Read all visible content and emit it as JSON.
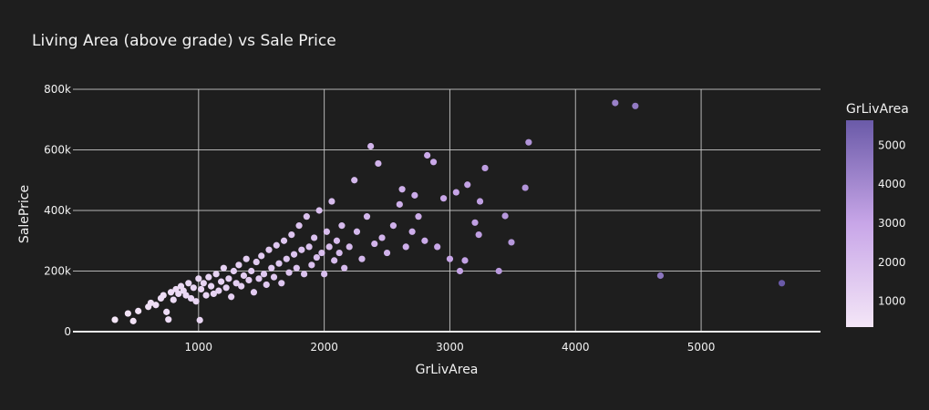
{
  "chart_data": {
    "type": "scatter",
    "title": "Living Area (above grade) vs Sale Price",
    "xlabel": "GrLivArea",
    "ylabel": "SalePrice",
    "xlim": [
      0,
      5950
    ],
    "ylim": [
      0,
      800000
    ],
    "x_ticks": [
      1000,
      2000,
      3000,
      4000,
      5000
    ],
    "x_tick_labels": [
      "1000",
      "2000",
      "3000",
      "4000",
      "5000"
    ],
    "y_ticks": [
      0,
      200000,
      400000,
      600000,
      800000
    ],
    "y_tick_labels": [
      "0",
      "200k",
      "400k",
      "600k",
      "800k"
    ],
    "grid": true,
    "colorbar": {
      "title": "GrLivArea",
      "range": [
        334,
        5642
      ],
      "ticks": [
        1000,
        2000,
        3000,
        4000,
        5000
      ],
      "tick_labels": [
        "1000",
        "2000",
        "3000",
        "4000",
        "5000"
      ],
      "color_low": "#f4e6f7",
      "color_mid": "#c8a6e8",
      "color_high": "#6a5aa8"
    },
    "points": [
      [
        334,
        39300
      ],
      [
        438,
        60000
      ],
      [
        480,
        35000
      ],
      [
        520,
        68000
      ],
      [
        600,
        82000
      ],
      [
        620,
        95000
      ],
      [
        660,
        88000
      ],
      [
        700,
        110000
      ],
      [
        720,
        120000
      ],
      [
        745,
        65000
      ],
      [
        760,
        40000
      ],
      [
        780,
        130000
      ],
      [
        800,
        105000
      ],
      [
        820,
        140000
      ],
      [
        840,
        125000
      ],
      [
        860,
        150000
      ],
      [
        880,
        135000
      ],
      [
        900,
        120000
      ],
      [
        920,
        160000
      ],
      [
        940,
        110000
      ],
      [
        960,
        145000
      ],
      [
        980,
        100000
      ],
      [
        1000,
        175000
      ],
      [
        1010,
        38000
      ],
      [
        1020,
        140000
      ],
      [
        1040,
        160000
      ],
      [
        1060,
        120000
      ],
      [
        1080,
        180000
      ],
      [
        1100,
        150000
      ],
      [
        1120,
        125000
      ],
      [
        1140,
        190000
      ],
      [
        1160,
        135000
      ],
      [
        1180,
        165000
      ],
      [
        1200,
        210000
      ],
      [
        1220,
        145000
      ],
      [
        1240,
        175000
      ],
      [
        1260,
        115000
      ],
      [
        1280,
        200000
      ],
      [
        1300,
        160000
      ],
      [
        1320,
        220000
      ],
      [
        1340,
        150000
      ],
      [
        1360,
        185000
      ],
      [
        1380,
        240000
      ],
      [
        1400,
        170000
      ],
      [
        1420,
        200000
      ],
      [
        1440,
        130000
      ],
      [
        1460,
        230000
      ],
      [
        1480,
        175000
      ],
      [
        1500,
        250000
      ],
      [
        1520,
        190000
      ],
      [
        1540,
        155000
      ],
      [
        1560,
        270000
      ],
      [
        1580,
        210000
      ],
      [
        1600,
        180000
      ],
      [
        1620,
        285000
      ],
      [
        1640,
        225000
      ],
      [
        1660,
        160000
      ],
      [
        1680,
        300000
      ],
      [
        1700,
        240000
      ],
      [
        1720,
        195000
      ],
      [
        1740,
        320000
      ],
      [
        1760,
        255000
      ],
      [
        1780,
        210000
      ],
      [
        1800,
        350000
      ],
      [
        1820,
        270000
      ],
      [
        1840,
        190000
      ],
      [
        1860,
        380000
      ],
      [
        1880,
        280000
      ],
      [
        1900,
        220000
      ],
      [
        1920,
        310000
      ],
      [
        1940,
        245000
      ],
      [
        1960,
        400000
      ],
      [
        1980,
        260000
      ],
      [
        2000,
        190000
      ],
      [
        2020,
        330000
      ],
      [
        2040,
        280000
      ],
      [
        2060,
        430000
      ],
      [
        2080,
        235000
      ],
      [
        2100,
        300000
      ],
      [
        2120,
        260000
      ],
      [
        2140,
        350000
      ],
      [
        2160,
        210000
      ],
      [
        2200,
        280000
      ],
      [
        2240,
        500000
      ],
      [
        2260,
        330000
      ],
      [
        2300,
        240000
      ],
      [
        2340,
        380000
      ],
      [
        2370,
        612000
      ],
      [
        2400,
        290000
      ],
      [
        2430,
        555000
      ],
      [
        2460,
        310000
      ],
      [
        2500,
        260000
      ],
      [
        2550,
        350000
      ],
      [
        2600,
        420000
      ],
      [
        2620,
        470000
      ],
      [
        2650,
        280000
      ],
      [
        2700,
        330000
      ],
      [
        2720,
        450000
      ],
      [
        2750,
        380000
      ],
      [
        2800,
        300000
      ],
      [
        2820,
        582000
      ],
      [
        2870,
        560000
      ],
      [
        2900,
        280000
      ],
      [
        2950,
        440000
      ],
      [
        3000,
        240000
      ],
      [
        3050,
        460000
      ],
      [
        3080,
        200000
      ],
      [
        3120,
        235000
      ],
      [
        3140,
        485000
      ],
      [
        3200,
        360000
      ],
      [
        3230,
        320000
      ],
      [
        3240,
        430000
      ],
      [
        3280,
        540000
      ],
      [
        3390,
        200000
      ],
      [
        3440,
        382000
      ],
      [
        3490,
        295000
      ],
      [
        3600,
        475000
      ],
      [
        3627,
        625000
      ],
      [
        4316,
        755000
      ],
      [
        4476,
        745000
      ],
      [
        4676,
        185000
      ],
      [
        5642,
        160000
      ]
    ]
  }
}
